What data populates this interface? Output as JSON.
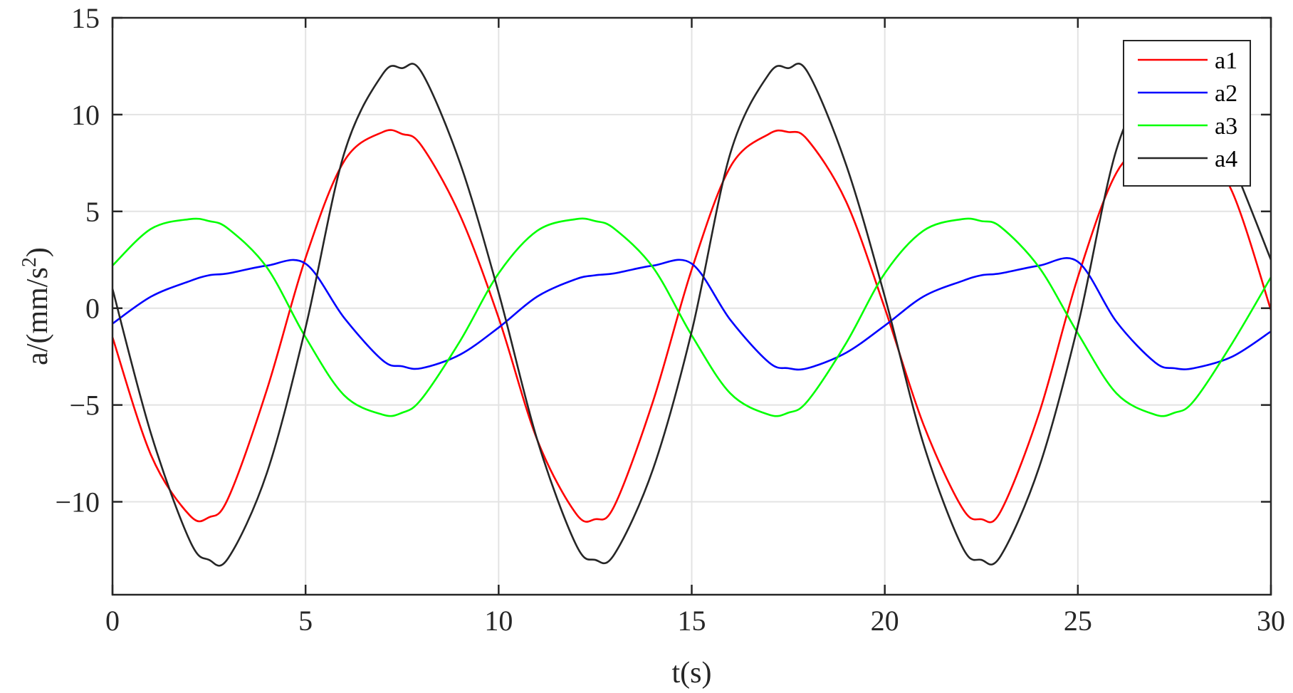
{
  "chart_data": {
    "type": "line",
    "title": "",
    "xlabel": "t(s)",
    "ylabel": "a/(mm/s2)",
    "ylabel_parts": {
      "main": "a/(mm/s",
      "sup": "2",
      "close": ")"
    },
    "xlim": [
      0,
      30
    ],
    "ylim": [
      -14.8,
      15
    ],
    "xticks": [
      0,
      5,
      10,
      15,
      20,
      25,
      30
    ],
    "xtick_labels": [
      "0",
      "5",
      "10",
      "15",
      "20",
      "25",
      "30"
    ],
    "yticks": [
      15,
      10,
      5,
      0,
      -5,
      -10
    ],
    "ytick_labels": [
      "15",
      "10",
      "5",
      "0",
      "−5",
      "−10"
    ],
    "grid": true,
    "legend_position": "top-right",
    "x": [
      0,
      1,
      2,
      2.5,
      3,
      4,
      5,
      6,
      7,
      7.5,
      8,
      9,
      10,
      11,
      12,
      12.5,
      13,
      14,
      15,
      16,
      17,
      17.5,
      18,
      19,
      20,
      21,
      22,
      22.5,
      23,
      24,
      25,
      26,
      27,
      27.5,
      28,
      29,
      30
    ],
    "series": [
      {
        "name": "a1",
        "color": "#ff0000",
        "values": [
          -1.5,
          -7.6,
          -10.7,
          -10.8,
          -9.8,
          -4.2,
          2.6,
          7.6,
          9.1,
          9.0,
          8.4,
          4.8,
          -0.5,
          -6.8,
          -10.6,
          -10.9,
          -10.2,
          -4.8,
          2.0,
          7.3,
          9.0,
          9.1,
          8.7,
          5.5,
          0.0,
          -6.0,
          -10.3,
          -10.9,
          -10.5,
          -5.4,
          1.6,
          7.0,
          8.8,
          9.2,
          8.9,
          6.0,
          -0.1
        ]
      },
      {
        "name": "a2",
        "color": "#0000ff",
        "values": [
          -0.8,
          0.6,
          1.4,
          1.7,
          1.8,
          2.2,
          2.3,
          -0.5,
          -2.7,
          -3.0,
          -3.1,
          -2.4,
          -1.0,
          0.6,
          1.5,
          1.7,
          1.8,
          2.2,
          2.3,
          -0.6,
          -2.8,
          -3.1,
          -3.1,
          -2.3,
          -0.9,
          0.6,
          1.4,
          1.7,
          1.8,
          2.2,
          2.4,
          -0.7,
          -2.8,
          -3.1,
          -3.1,
          -2.5,
          -1.2
        ]
      },
      {
        "name": "a3",
        "color": "#00ff00",
        "values": [
          2.2,
          4.1,
          4.6,
          4.5,
          4.1,
          2.1,
          -1.5,
          -4.5,
          -5.5,
          -5.4,
          -4.7,
          -1.7,
          1.8,
          4.0,
          4.6,
          4.5,
          4.1,
          2.1,
          -1.4,
          -4.4,
          -5.5,
          -5.4,
          -4.8,
          -1.8,
          1.8,
          4.0,
          4.6,
          4.5,
          4.2,
          2.1,
          -1.3,
          -4.4,
          -5.5,
          -5.4,
          -4.8,
          -1.8,
          1.6
        ]
      },
      {
        "name": "a4",
        "color": "#262626",
        "values": [
          1.0,
          -6.5,
          -12.0,
          -13.0,
          -12.9,
          -8.5,
          -1.0,
          8.0,
          12.1,
          12.4,
          12.2,
          7.5,
          0.8,
          -6.8,
          -12.2,
          -13.0,
          -12.7,
          -8.3,
          -1.2,
          8.0,
          12.1,
          12.4,
          12.2,
          7.4,
          0.6,
          -7.0,
          -12.3,
          -13.0,
          -12.8,
          -8.2,
          -0.9,
          8.2,
          12.2,
          12.4,
          12.0,
          7.5,
          2.5
        ]
      }
    ]
  }
}
